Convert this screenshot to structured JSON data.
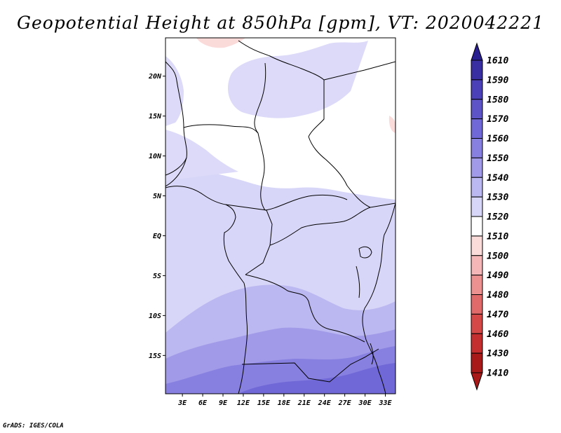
{
  "title": "Geopotential Height at 850hPa [gpm], VT: 2020042221",
  "credit": "GrADS: IGES/COLA",
  "map": {
    "lat_labels": [
      "20N",
      "15N",
      "10N",
      "5N",
      "EQ",
      "5S",
      "10S",
      "15S"
    ],
    "lat_values": [
      20,
      15,
      10,
      5,
      0,
      -5,
      -10,
      -15
    ],
    "lon_labels": [
      "3E",
      "6E",
      "9E",
      "12E",
      "15E",
      "18E",
      "21E",
      "24E",
      "27E",
      "30E",
      "33E"
    ],
    "lon_values": [
      3,
      6,
      9,
      12,
      15,
      18,
      21,
      24,
      27,
      30,
      33
    ],
    "lon_range": [
      0.5,
      34.5
    ],
    "lat_range": [
      -19.8,
      24.8
    ]
  },
  "colorbar": {
    "levels": [
      "1610",
      "1590",
      "1580",
      "1570",
      "1560",
      "1550",
      "1540",
      "1530",
      "1520",
      "1510",
      "1500",
      "1490",
      "1480",
      "1470",
      "1460",
      "1430",
      "1410"
    ],
    "colors": [
      "#2a1f8f",
      "#3a2ea3",
      "#4b40b8",
      "#5d54c8",
      "#7068d6",
      "#8880e0",
      "#a09ae8",
      "#bbb7f0",
      "#d8d6f8",
      "#ffffff",
      "#fbdada",
      "#f4b6b6",
      "#ec9090",
      "#e06a6a",
      "#d44848",
      "#c42e2e",
      "#a81a1a"
    ]
  }
}
